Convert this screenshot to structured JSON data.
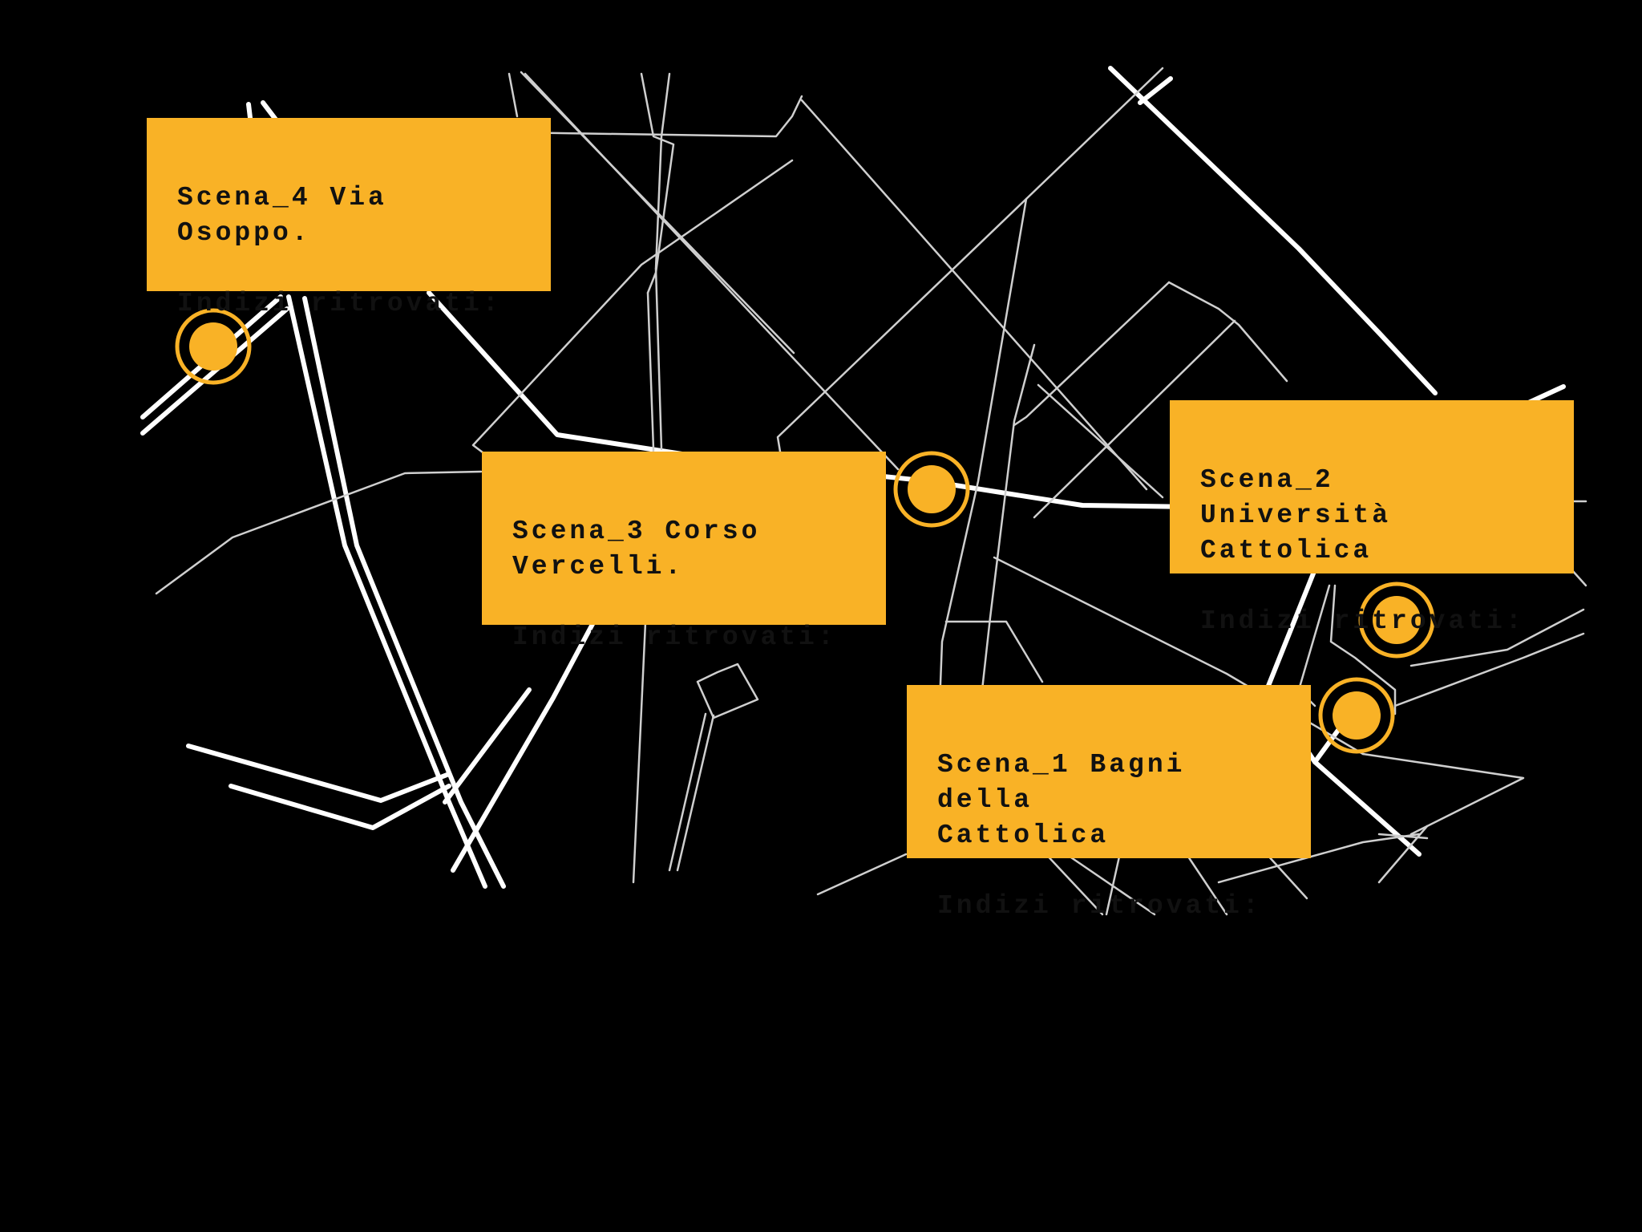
{
  "colors": {
    "background": "#000000",
    "accent": "#F9B226",
    "road": "#FFFFFF"
  },
  "scenes": [
    {
      "id": "scena-4",
      "title": "Scena_4 Via Osoppo.",
      "clues_label": "Indizi ritrovati:"
    },
    {
      "id": "scena-3",
      "title": "Scena_3 Corso\nVercelli.",
      "clues_label": "Indizi ritrovati:"
    },
    {
      "id": "scena-2",
      "title": "Scena_2 Università\nCattolica",
      "clues_label": "Indizi ritrovati:"
    },
    {
      "id": "scena-1",
      "title": "Scena_1 Bagni della\nCattolica",
      "clues_label": "Indizi ritrovati:"
    }
  ],
  "markers": [
    {
      "scene": "scena-4",
      "icon": "location-marker-icon"
    },
    {
      "scene": "scena-3",
      "icon": "location-marker-icon"
    },
    {
      "scene": "scena-2",
      "icon": "location-marker-icon"
    },
    {
      "scene": "scena-1",
      "icon": "location-marker-icon"
    }
  ]
}
